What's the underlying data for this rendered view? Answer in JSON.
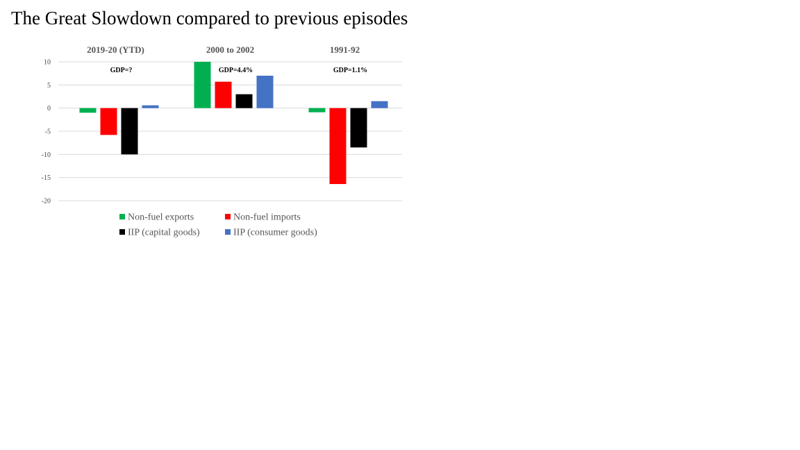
{
  "title": "The Great Slowdown compared to previous episodes",
  "chart_data": {
    "type": "bar",
    "title": "The Great Slowdown compared to previous episodes",
    "categories": [
      "2019-20 (YTD)",
      "2000 to 2002",
      "1991-92"
    ],
    "annotations": [
      "GDP=?",
      "GDP=4.4%",
      "GDP=1.1%"
    ],
    "series": [
      {
        "name": "Non-fuel exports",
        "color": "#00b050",
        "values": [
          -1.0,
          10.0,
          -0.9
        ]
      },
      {
        "name": "Non-fuel imports",
        "color": "#ff0000",
        "values": [
          -5.8,
          5.7,
          -16.4
        ]
      },
      {
        "name": "IIP (capital goods)",
        "color": "#000000",
        "values": [
          -10.0,
          3.0,
          -8.5
        ]
      },
      {
        "name": "IIP (consumer goods)",
        "color": "#4472c4",
        "values": [
          0.6,
          7.0,
          1.5
        ]
      }
    ],
    "ylim": [
      -20,
      10
    ],
    "yticks": [
      10,
      5,
      0,
      -5,
      -10,
      -15,
      -20
    ],
    "grid": true,
    "legend": "bottom"
  }
}
